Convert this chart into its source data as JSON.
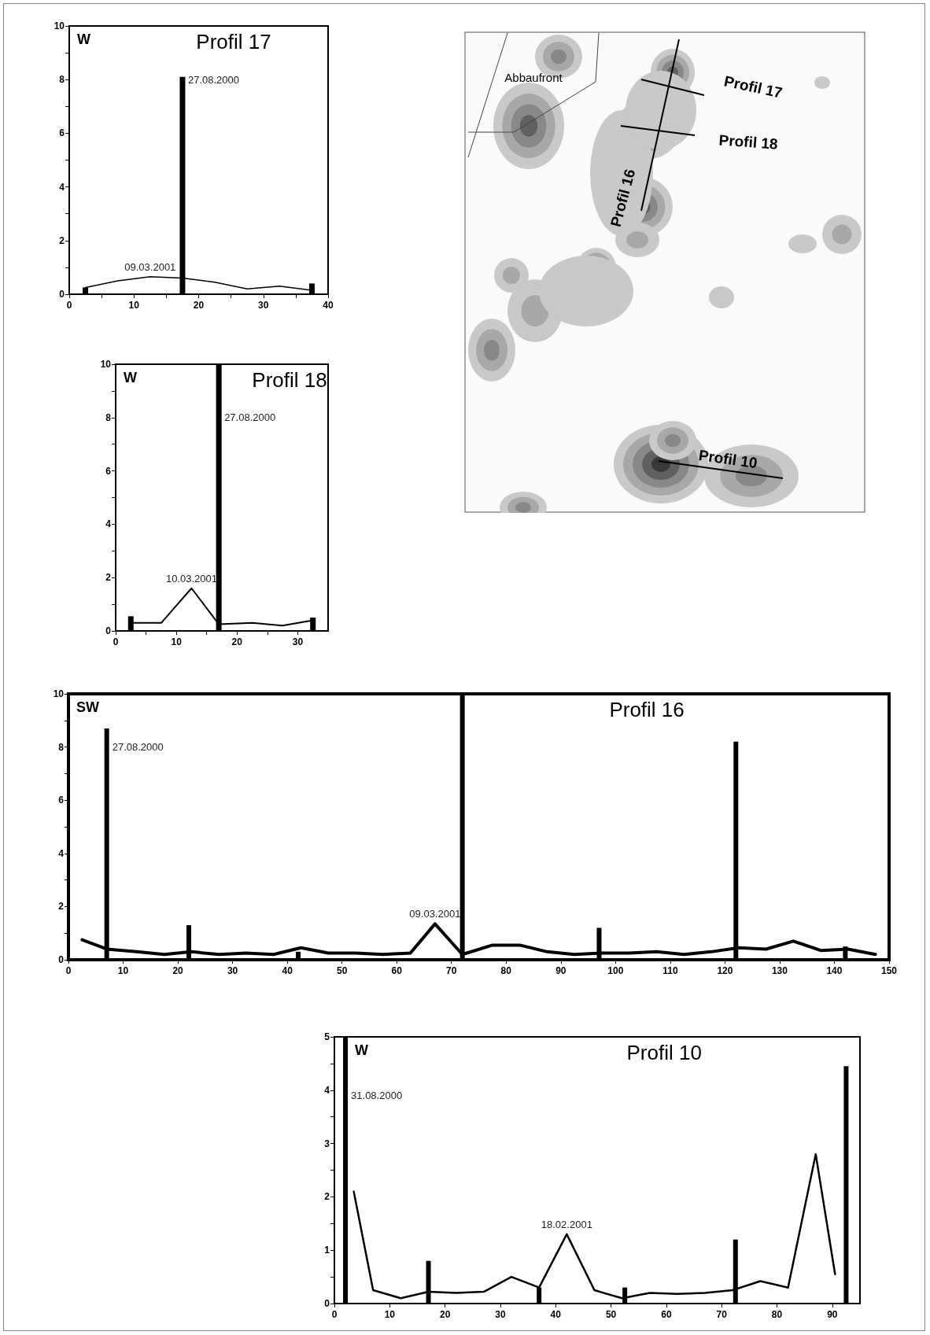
{
  "chart_data": [
    {
      "type": "bar",
      "title": "Profil 17",
      "xlim": [
        0,
        40
      ],
      "xticks": [
        0,
        {
          "value": 5,
          "label": null
        },
        10,
        {
          "value": 15,
          "label": null
        },
        20,
        {
          "value": 25,
          "label": null
        },
        30,
        {
          "value": 35,
          "label": null
        },
        40
      ],
      "ylim": [
        0,
        10
      ],
      "yticks": [
        0,
        {
          "value": 1,
          "label": null
        },
        2,
        {
          "value": 3,
          "label": null
        },
        4,
        {
          "value": 5,
          "label": null
        },
        6,
        {
          "value": 7,
          "label": null
        },
        8,
        {
          "value": 9,
          "label": null
        },
        10
      ],
      "grid": false,
      "marker": "none",
      "annotations": [
        "W",
        {
          "text": "27.08.2000",
          "x": 17.5,
          "y": 8
        },
        {
          "text": "09.03.2001",
          "x": 12.5,
          "y": 0.65
        }
      ],
      "series": [
        {
          "type": "bar",
          "color": "#000000",
          "x": [
            2.5,
            17.5,
            37.5
          ],
          "values": [
            0.25,
            8.1,
            0.4
          ]
        },
        {
          "type": "line",
          "color": "#000000",
          "x": [
            2.5,
            7.5,
            12.5,
            17.5,
            22.5,
            27.5,
            32.5,
            37.5
          ],
          "values": [
            0.25,
            0.5,
            0.65,
            0.6,
            0.45,
            0.2,
            0.3,
            0.15
          ]
        }
      ]
    },
    {
      "type": "bar",
      "title": "Profil 18",
      "xlim": [
        0,
        35
      ],
      "xticks": [
        0,
        {
          "value": 5,
          "label": null
        },
        10,
        {
          "value": 15,
          "label": null
        },
        20,
        {
          "value": 25,
          "label": null
        },
        30
      ],
      "ylim": [
        0,
        10
      ],
      "yticks": [
        0,
        {
          "value": 1,
          "label": null
        },
        2,
        {
          "value": 3,
          "label": null
        },
        4,
        {
          "value": 5,
          "label": null
        },
        6,
        {
          "value": 7,
          "label": null
        },
        8,
        {
          "value": 9,
          "label": null
        },
        10
      ],
      "grid": false,
      "marker": "none",
      "annotations": [
        "W",
        {
          "text": "27.08.2000",
          "x": 17,
          "y": 8
        },
        {
          "text": "10.03.2001",
          "x": 12.5,
          "y": 1.6
        }
      ],
      "series": [
        {
          "type": "bar",
          "color": "#000000",
          "x": [
            2.5,
            17,
            32.5
          ],
          "values": [
            0.55,
            10,
            0.5
          ]
        },
        {
          "type": "line",
          "color": "#000000",
          "x": [
            2.5,
            7.5,
            12.5,
            17,
            22.5,
            27.5,
            32.5
          ],
          "values": [
            0.3,
            0.3,
            1.6,
            0.25,
            0.3,
            0.2,
            0.4
          ]
        }
      ]
    },
    {
      "type": "bar",
      "title": "Profil 16",
      "xlim": [
        0,
        150
      ],
      "xticks": [
        0,
        10,
        20,
        30,
        40,
        50,
        60,
        70,
        80,
        90,
        100,
        110,
        120,
        130,
        140,
        150
      ],
      "ylim": [
        0,
        10
      ],
      "yticks": [
        0,
        {
          "value": 1,
          "label": null
        },
        2,
        {
          "value": 3,
          "label": null
        },
        4,
        {
          "value": 5,
          "label": null
        },
        6,
        {
          "value": 7,
          "label": null
        },
        8,
        {
          "value": 9,
          "label": null
        },
        10
      ],
      "grid": false,
      "marker": "none",
      "annotations": [
        "SW",
        {
          "text": "27.08.2000",
          "x": 7,
          "y": 8
        },
        {
          "text": "09.03.2001",
          "x": 67,
          "y": 1.35
        }
      ],
      "series": [
        {
          "type": "bar",
          "color": "#000000",
          "x": [
            7,
            22,
            42,
            72,
            97,
            122,
            142
          ],
          "values": [
            8.7,
            1.3,
            0.3,
            10,
            1.2,
            8.2,
            0.5
          ]
        },
        {
          "type": "line",
          "color": "#000000",
          "x": [
            2.5,
            7,
            12.5,
            17.5,
            22.5,
            27.5,
            32.5,
            37.5,
            42.5,
            47.5,
            52.5,
            57.5,
            62.5,
            67,
            72,
            77.5,
            82.5,
            87.5,
            92.5,
            97.5,
            102.5,
            107.5,
            112.5,
            117.5,
            122.5,
            127.5,
            132.5,
            137.5,
            142.5,
            147.5
          ],
          "values": [
            0.75,
            0.4,
            0.3,
            0.2,
            0.3,
            0.2,
            0.25,
            0.2,
            0.45,
            0.25,
            0.25,
            0.2,
            0.25,
            1.35,
            0.2,
            0.55,
            0.55,
            0.3,
            0.2,
            0.25,
            0.25,
            0.3,
            0.2,
            0.3,
            0.45,
            0.4,
            0.7,
            0.35,
            0.4,
            0.2
          ]
        }
      ]
    },
    {
      "type": "bar",
      "title": "Profil 10",
      "xlim": [
        0,
        95
      ],
      "xticks": [
        0,
        10,
        20,
        30,
        40,
        50,
        60,
        70,
        80,
        90
      ],
      "ylim": [
        0,
        5
      ],
      "yticks": [
        0,
        {
          "value": 0.5,
          "label": null
        },
        1,
        {
          "value": 1.5,
          "label": null
        },
        2,
        {
          "value": 2.5,
          "label": null
        },
        3,
        {
          "value": 3.5,
          "label": null
        },
        4,
        {
          "value": 4.5,
          "label": null
        },
        5
      ],
      "grid": false,
      "marker": "none",
      "annotations": [
        "W",
        {
          "text": "31.08.2000",
          "x": 2,
          "y": 3.9
        },
        {
          "text": "18.02.2001",
          "x": 42,
          "y": 1.3
        }
      ],
      "series": [
        {
          "type": "bar",
          "color": "#000000",
          "x": [
            2,
            17,
            37,
            52.5,
            72.5,
            92.5
          ],
          "values": [
            5,
            0.8,
            0.3,
            0.3,
            1.2,
            4.45
          ]
        },
        {
          "type": "line",
          "color": "#000000",
          "x": [
            3.5,
            7,
            12,
            17,
            22,
            27,
            32,
            37,
            42,
            47,
            52,
            57,
            62,
            67,
            72,
            77,
            82,
            87,
            90.5
          ],
          "values": [
            2.1,
            0.25,
            0.1,
            0.22,
            0.2,
            0.22,
            0.5,
            0.3,
            1.3,
            0.25,
            0.1,
            0.2,
            0.18,
            0.2,
            0.25,
            0.42,
            0.3,
            2.8,
            0.55
          ]
        }
      ]
    },
    {
      "type": "other",
      "annotations": [
        "Abbaufront",
        "Profil 17",
        "Profil 18",
        "Profil 16",
        "Profil 10"
      ]
    }
  ]
}
